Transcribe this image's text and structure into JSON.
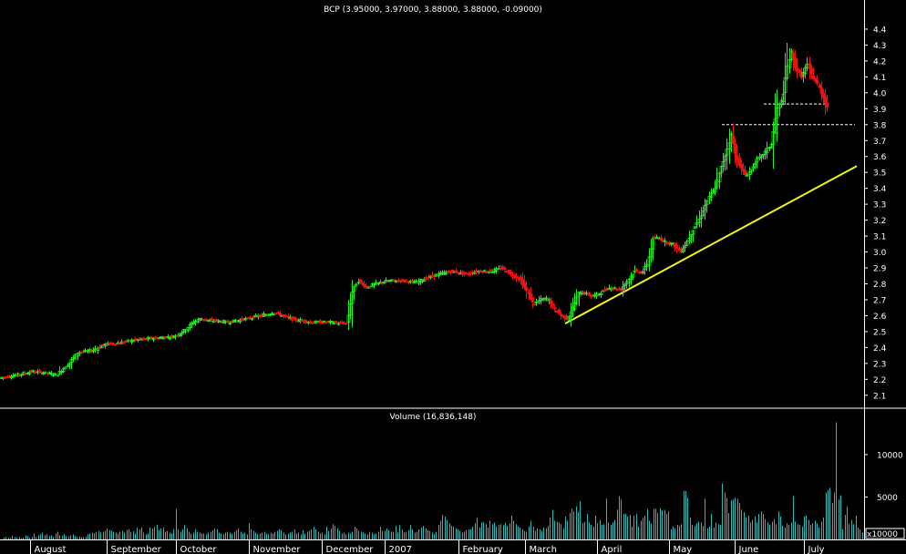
{
  "chart_data": [
    {
      "type": "candlestick",
      "title": "BCP (3.95000, 3.97000, 3.88000, 3.88000, -0.09000)",
      "y_ticks": [
        "2.1",
        "2.2",
        "2.3",
        "2.4",
        "2.5",
        "2.6",
        "2.7",
        "2.8",
        "2.9",
        "3.0",
        "3.1",
        "3.2",
        "3.3",
        "3.4",
        "3.5",
        "3.6",
        "3.7",
        "3.8",
        "3.9",
        "4.0",
        "4.1",
        "4.2",
        "4.3",
        "4.4"
      ],
      "ylim": [
        2.03,
        4.48
      ],
      "x_labels": [
        "August",
        "September",
        "October",
        "November",
        "December",
        "2007",
        "February",
        "March",
        "April",
        "May",
        "June",
        "July"
      ],
      "colors": {
        "up": "#22ee22",
        "down": "#ee1111",
        "trendline": "#f2f222",
        "volume": "#22bbbb",
        "grid": "#ffffff",
        "background": "#000000"
      },
      "close_path": [
        [
          0,
          2.21
        ],
        [
          20,
          2.23
        ],
        [
          35,
          2.25
        ],
        [
          50,
          2.24
        ],
        [
          62,
          2.23
        ],
        [
          75,
          2.3
        ],
        [
          85,
          2.37
        ],
        [
          100,
          2.38
        ],
        [
          115,
          2.42
        ],
        [
          130,
          2.43
        ],
        [
          150,
          2.45
        ],
        [
          170,
          2.46
        ],
        [
          190,
          2.47
        ],
        [
          200,
          2.5
        ],
        [
          210,
          2.55
        ],
        [
          218,
          2.58
        ],
        [
          230,
          2.57
        ],
        [
          250,
          2.56
        ],
        [
          270,
          2.58
        ],
        [
          285,
          2.6
        ],
        [
          300,
          2.62
        ],
        [
          320,
          2.58
        ],
        [
          340,
          2.56
        ],
        [
          360,
          2.56
        ],
        [
          380,
          2.55
        ],
        [
          386,
          2.75
        ],
        [
          392,
          2.82
        ],
        [
          402,
          2.78
        ],
        [
          412,
          2.8
        ],
        [
          425,
          2.82
        ],
        [
          440,
          2.82
        ],
        [
          455,
          2.81
        ],
        [
          465,
          2.83
        ],
        [
          480,
          2.86
        ],
        [
          495,
          2.88
        ],
        [
          510,
          2.86
        ],
        [
          525,
          2.88
        ],
        [
          540,
          2.88
        ],
        [
          550,
          2.9
        ],
        [
          560,
          2.86
        ],
        [
          570,
          2.83
        ],
        [
          578,
          2.75
        ],
        [
          585,
          2.67
        ],
        [
          592,
          2.7
        ],
        [
          600,
          2.71
        ],
        [
          608,
          2.64
        ],
        [
          615,
          2.6
        ],
        [
          622,
          2.58
        ],
        [
          628,
          2.65
        ],
        [
          635,
          2.75
        ],
        [
          642,
          2.74
        ],
        [
          650,
          2.72
        ],
        [
          660,
          2.75
        ],
        [
          670,
          2.78
        ],
        [
          680,
          2.76
        ],
        [
          688,
          2.82
        ],
        [
          696,
          2.88
        ],
        [
          704,
          2.87
        ],
        [
          710,
          2.93
        ],
        [
          716,
          3.08
        ],
        [
          722,
          3.09
        ],
        [
          730,
          3.06
        ],
        [
          738,
          3.05
        ],
        [
          746,
          3.0
        ],
        [
          752,
          3.05
        ],
        [
          760,
          3.14
        ],
        [
          768,
          3.22
        ],
        [
          776,
          3.33
        ],
        [
          784,
          3.4
        ],
        [
          790,
          3.52
        ],
        [
          796,
          3.62
        ],
        [
          802,
          3.74
        ],
        [
          806,
          3.62
        ],
        [
          812,
          3.53
        ],
        [
          818,
          3.48
        ],
        [
          824,
          3.52
        ],
        [
          830,
          3.58
        ],
        [
          838,
          3.62
        ],
        [
          846,
          3.68
        ],
        [
          852,
          3.9
        ],
        [
          858,
          3.96
        ],
        [
          863,
          4.16
        ],
        [
          868,
          4.26
        ],
        [
          873,
          4.15
        ],
        [
          879,
          4.1
        ],
        [
          885,
          4.18
        ],
        [
          891,
          4.1
        ],
        [
          897,
          4.05
        ],
        [
          903,
          3.97
        ],
        [
          908,
          3.9
        ]
      ],
      "trendline": {
        "start": [
          620,
          2.55
        ],
        "end": [
          940,
          3.54
        ]
      },
      "resistance_lines": [
        {
          "price": 3.8,
          "x_from": 792,
          "x_to": 938
        },
        {
          "price": 3.93,
          "x_from": 838,
          "x_to": 906
        }
      ]
    },
    {
      "type": "bar",
      "title": "Volume (16,836,148)",
      "y_ticks": [
        "5000",
        "10000"
      ],
      "unit_label": "x10000",
      "values": [
        200,
        300,
        200,
        180,
        400,
        250,
        200,
        300,
        150,
        200,
        500,
        400,
        200,
        300,
        700,
        300,
        500,
        600,
        800,
        500,
        600,
        400,
        500,
        300,
        700,
        900,
        500,
        400,
        600,
        400,
        350,
        500,
        600,
        400,
        300,
        350,
        250,
        300,
        300,
        600,
        700,
        800,
        700,
        900,
        1000,
        800,
        900,
        1000,
        1300,
        1100,
        1000,
        900,
        800,
        700,
        900,
        1000,
        800,
        1100,
        1200,
        900,
        1000,
        700,
        1400,
        1200,
        1400,
        800,
        600,
        700,
        1400,
        1300,
        1500,
        1700,
        1100,
        1300,
        1400,
        900,
        1000,
        800,
        700,
        1200,
        3600,
        1200,
        900,
        1200,
        1700,
        1300,
        900,
        700,
        800,
        1200,
        900,
        800,
        700,
        700,
        600,
        800,
        900,
        1100,
        1300,
        1200,
        800,
        700,
        600,
        800,
        900,
        800,
        700,
        900,
        1100,
        1300,
        900,
        700,
        800,
        600,
        1900,
        1200,
        1000,
        800,
        600,
        700,
        800,
        900,
        700,
        600,
        800,
        700,
        900,
        1000,
        1200,
        1100,
        800,
        600,
        700,
        800,
        900,
        1200,
        700,
        800,
        600,
        1100,
        700,
        900,
        1000,
        1200,
        1500,
        1200,
        900,
        700,
        800,
        600,
        1500,
        1000,
        1300,
        1800,
        1600,
        1300,
        1000,
        700,
        800,
        600,
        800,
        700,
        900,
        1500,
        1300,
        1000,
        900,
        800,
        700,
        600,
        900,
        800,
        600,
        700,
        900,
        1500,
        1000,
        1000,
        1300,
        1100,
        900,
        900,
        1600,
        800,
        1700,
        1200,
        800,
        900,
        1100,
        1700,
        1200,
        800,
        900,
        1200,
        1400,
        1600,
        1300,
        1100,
        1000,
        800,
        600,
        900,
        1700,
        2200,
        2900,
        2700,
        2300,
        1900,
        1600,
        1500,
        1300,
        1200,
        1000,
        800,
        900,
        1100,
        1200,
        1200,
        1500,
        1900,
        2600,
        1400,
        2000,
        2000,
        1800,
        1400,
        2200,
        1800,
        2000,
        1500,
        1700,
        1800,
        1700,
        2000,
        1600,
        1900,
        2800,
        2200,
        1800,
        1500,
        1400,
        1200,
        1000,
        900,
        1500,
        2200,
        1500,
        1000,
        1300,
        1200,
        1000,
        1400,
        1300,
        1600,
        2600,
        3500,
        2200,
        2100,
        2000,
        1800,
        1300,
        2700,
        2200,
        3100,
        3600,
        3300,
        3900,
        3200,
        4500,
        1900,
        2100,
        3000,
        2000,
        1700,
        1500,
        2800,
        1900,
        2300,
        1700,
        1800,
        4800,
        2000,
        1700,
        2000,
        2300,
        3500,
        5100,
        4700,
        3000,
        3000,
        2700,
        2900,
        1500,
        2800,
        3000,
        1500,
        2200,
        2500,
        2800,
        3600,
        2200,
        1900,
        3600,
        3600,
        3100,
        3700,
        3400,
        3500,
        3000,
        3300,
        1200,
        1500,
        1300,
        1700,
        1600,
        1800,
        5700,
        5700,
        4900,
        2600,
        1700,
        1600,
        1900,
        2100,
        2000,
        1600,
        4800,
        1300,
        1500,
        3000,
        1400,
        2000,
        1800,
        1700,
        6600,
        5500,
        4900,
        3100,
        4600,
        4700,
        4900,
        4800,
        4300,
        3500,
        3200,
        2600,
        2800,
        2000,
        2300,
        2700,
        2000,
        3000,
        3300,
        3000,
        2400,
        2000,
        1700,
        2100,
        2400,
        1800,
        3300,
        2700,
        1600,
        1400,
        1900,
        1700,
        2000,
        5100,
        2100,
        1800,
        1700,
        1500,
        2700,
        2800,
        2300,
        1700,
        1900,
        2200,
        1900,
        1400,
        2100,
        2600,
        5500,
        5800,
        6100,
        4300,
        5500,
        13800,
        4700,
        5200,
        1200,
        2900,
        3900,
        1800,
        2300,
        1800,
        2800,
        1400,
        1200,
        800
      ],
      "ylim": [
        0,
        14500
      ]
    }
  ]
}
